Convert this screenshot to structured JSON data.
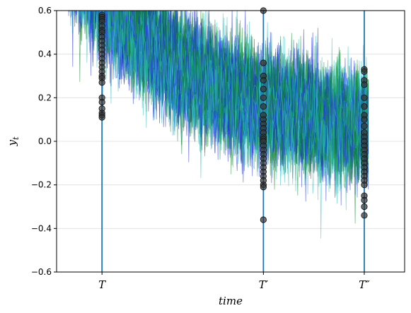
{
  "chart_data": {
    "type": "line",
    "title": "",
    "xlabel": "time",
    "ylabel": "y_t",
    "ylim": [
      -0.6,
      0.6
    ],
    "xlim": [
      -45,
      300
    ],
    "yticks": [
      -0.6,
      -0.4,
      -0.2,
      0.0,
      0.2,
      0.4,
      0.6
    ],
    "ytick_labels": [
      "−0.6",
      "−0.4",
      "−0.2",
      "0.0",
      "0.2",
      "0.4",
      "0.6"
    ],
    "grid": "horizontal",
    "legend": "none",
    "series_count": 75,
    "series_length": 300,
    "series_colors": [
      "#1f2ee0",
      "#138a2c",
      "#2fbfbf"
    ],
    "process": {
      "initial": 1.0,
      "decay_rate": 0.025,
      "noise_sd": 0.12,
      "mean": 0.0
    },
    "markers": [
      {
        "label": "T",
        "x": 0,
        "color": "#1f77b4",
        "values": [
          0.58,
          0.57,
          0.56,
          0.55,
          0.53,
          0.51,
          0.5,
          0.48,
          0.46,
          0.44,
          0.42,
          0.4,
          0.38,
          0.36,
          0.34,
          0.32,
          0.3,
          0.29,
          0.27,
          0.2,
          0.18,
          0.15,
          0.13,
          0.12,
          0.11
        ]
      },
      {
        "label": "T′",
        "x": 160,
        "color": "#1f77b4",
        "values": [
          0.6,
          0.36,
          0.3,
          0.28,
          0.24,
          0.2,
          0.16,
          0.12,
          0.1,
          0.08,
          0.06,
          0.04,
          0.02,
          0.01,
          0.0,
          -0.02,
          -0.04,
          -0.06,
          -0.08,
          -0.1,
          -0.12,
          -0.14,
          -0.16,
          -0.18,
          -0.2,
          -0.21,
          -0.36
        ]
      },
      {
        "label": "T″",
        "x": 260,
        "color": "#1f77b4",
        "values": [
          0.33,
          0.32,
          0.28,
          0.26,
          0.2,
          0.16,
          0.12,
          0.1,
          0.07,
          0.04,
          0.02,
          0.0,
          -0.02,
          -0.04,
          -0.06,
          -0.08,
          -0.1,
          -0.12,
          -0.14,
          -0.16,
          -0.18,
          -0.2,
          -0.25,
          -0.27,
          -0.3,
          -0.34
        ]
      }
    ],
    "marker_color": "#333333"
  }
}
